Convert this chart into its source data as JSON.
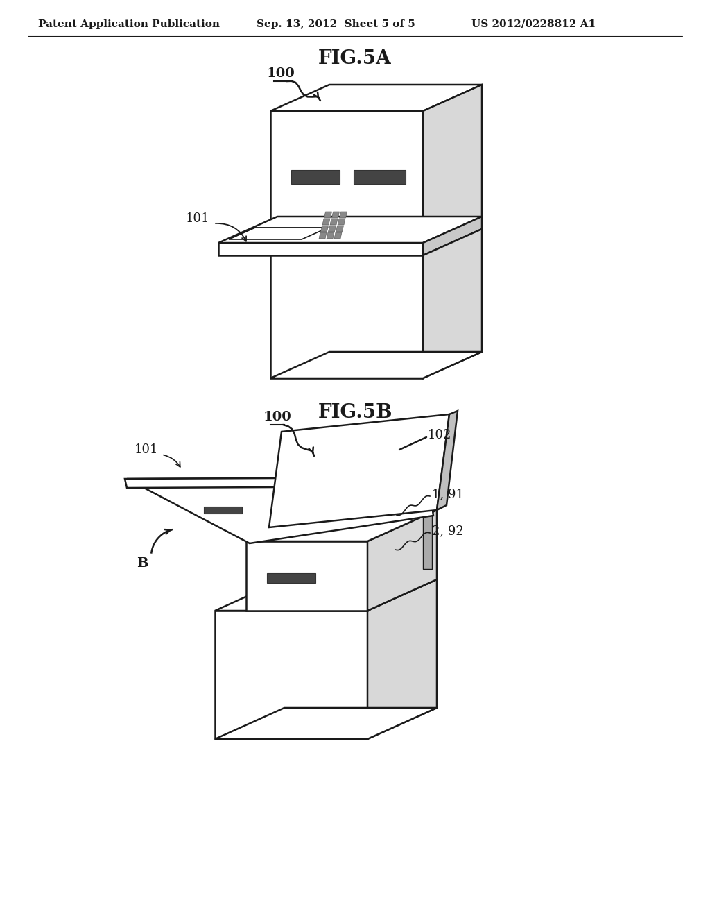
{
  "background_color": "#ffffff",
  "header_left": "Patent Application Publication",
  "header_center": "Sep. 13, 2012  Sheet 5 of 5",
  "header_right": "US 2012/0228812 A1",
  "fig5a_title": "FIG.5A",
  "fig5b_title": "FIG.5B",
  "line_color": "#1a1a1a",
  "line_width": 1.8,
  "label_fontsize": 13,
  "header_fontsize": 11,
  "title_fontsize": 20
}
